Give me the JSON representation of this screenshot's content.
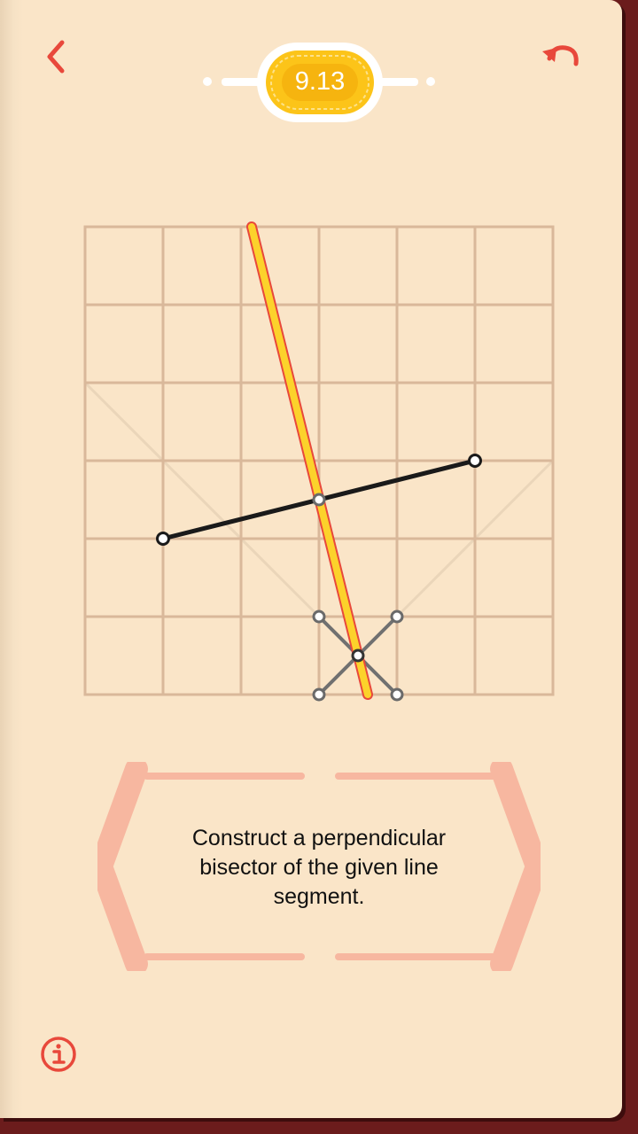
{
  "header": {
    "back_icon": "chevron-left-icon",
    "undo_icon": "undo-icon",
    "level": "9.13"
  },
  "instruction": {
    "text": "Construct a perpendicular bisector of the given line segment."
  },
  "footer": {
    "info_icon": "info-icon"
  },
  "colors": {
    "background": "#fae5c8",
    "grid": "#d9b89a",
    "accent": "#e8483b",
    "highlight": "#fcd22b",
    "segment": "#1a1a1a",
    "frame": "#f7b7a0"
  }
}
